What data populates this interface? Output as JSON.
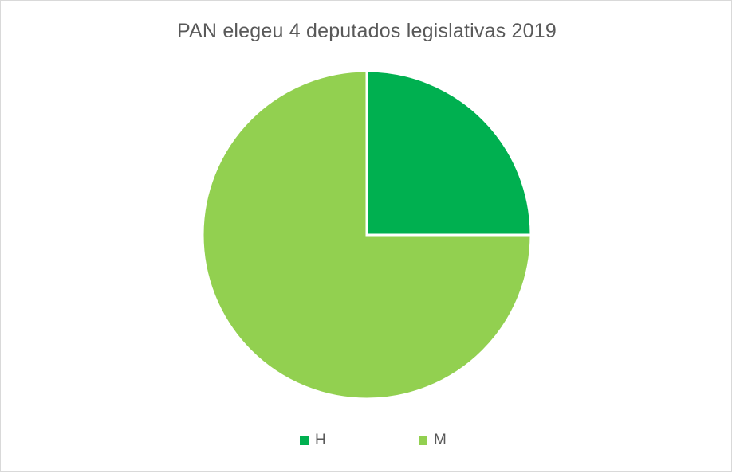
{
  "chart_data": {
    "type": "pie",
    "title": "PAN elegeu 4 deputados  legislativas 2019",
    "categories": [
      "H",
      "M"
    ],
    "values": [
      1,
      3
    ],
    "colors": [
      "#00b050",
      "#92d050"
    ],
    "start_angle_deg": 0,
    "direction": "clockwise",
    "legend": "bottom"
  }
}
